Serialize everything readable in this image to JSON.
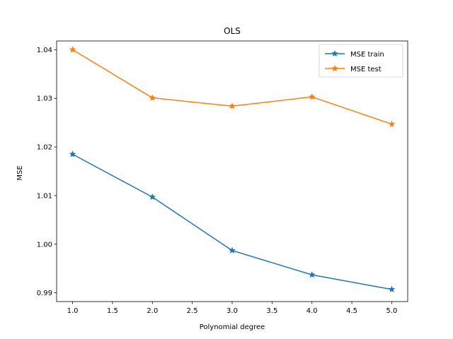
{
  "chart_data": {
    "type": "line",
    "title": "OLS",
    "xlabel": "Polynomial degree",
    "ylabel": "MSE",
    "x": [
      1.0,
      2.0,
      3.0,
      4.0,
      5.0
    ],
    "xlim": [
      0.8,
      5.2
    ],
    "ylim": [
      0.9882,
      1.0418
    ],
    "x_ticks": [
      "1.0",
      "1.5",
      "2.0",
      "2.5",
      "3.0",
      "3.5",
      "4.0",
      "4.5",
      "5.0"
    ],
    "y_ticks": [
      "0.99",
      "1.00",
      "1.01",
      "1.02",
      "1.03",
      "1.04"
    ],
    "grid": false,
    "legend_position": "top-right",
    "series": [
      {
        "name": "MSE train",
        "color": "#1f77b4",
        "marker": "star",
        "values": [
          1.0185,
          1.0097,
          0.9987,
          0.9937,
          0.9907
        ]
      },
      {
        "name": "MSE test",
        "color": "#ff7f0e",
        "marker": "star",
        "values": [
          1.04,
          1.0301,
          1.0284,
          1.0303,
          1.0247
        ]
      }
    ]
  }
}
